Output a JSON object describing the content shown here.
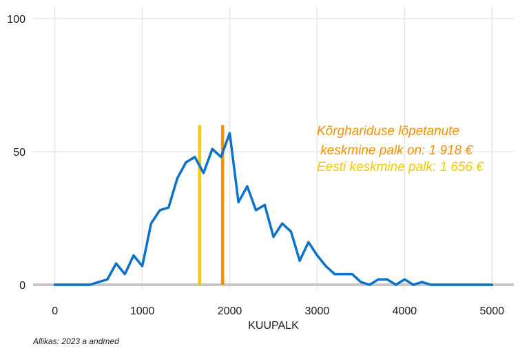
{
  "chart_data": {
    "type": "line",
    "title": "",
    "xlabel": "KUUPALK",
    "ylabel": "",
    "xlim": [
      -250,
      5250
    ],
    "ylim": [
      0,
      100
    ],
    "x_ticks": [
      "0",
      "1000",
      "2000",
      "3000",
      "4000",
      "5000"
    ],
    "y_ticks": [
      "0",
      "50",
      "100"
    ],
    "grid": true,
    "series": [
      {
        "color": "#0a72c8",
        "x": [
          0,
          100,
          200,
          300,
          400,
          500,
          600,
          700,
          800,
          900,
          1000,
          1100,
          1200,
          1300,
          1400,
          1500,
          1600,
          1700,
          1800,
          1900,
          2000,
          2100,
          2200,
          2300,
          2400,
          2500,
          2600,
          2700,
          2800,
          2900,
          3000,
          3100,
          3200,
          3300,
          3400,
          3500,
          3600,
          3700,
          3800,
          3900,
          4000,
          4100,
          4200,
          4300,
          4400,
          4500,
          4600,
          4700,
          4800,
          4900,
          5000
        ],
        "y": [
          0,
          0,
          0,
          0,
          0,
          1,
          2,
          8,
          4,
          11,
          7,
          23,
          28,
          29,
          40,
          46,
          48,
          42,
          51,
          48,
          57,
          31,
          37,
          28,
          30,
          18,
          23,
          20,
          9,
          16,
          11,
          7,
          4,
          4,
          4,
          1,
          0,
          2,
          2,
          0,
          2,
          0,
          1,
          0,
          0,
          0,
          0,
          0,
          0,
          0,
          0
        ]
      }
    ],
    "vlines": [
      {
        "x": 1656,
        "y_top": 60,
        "color": "#f5c800"
      },
      {
        "x": 1918,
        "y_top": 60,
        "color": "#f39200"
      }
    ],
    "annotations": [
      {
        "lines": [
          "Kõrghariduse lõpetanute",
          " keskmine palk on: 1 918 €"
        ],
        "color": "#f39200"
      },
      {
        "lines": [
          "Eesti keskmine palk: 1 656 €"
        ],
        "color": "#f5c800"
      }
    ]
  },
  "source_note": "Allikas: 2023 a andmed"
}
